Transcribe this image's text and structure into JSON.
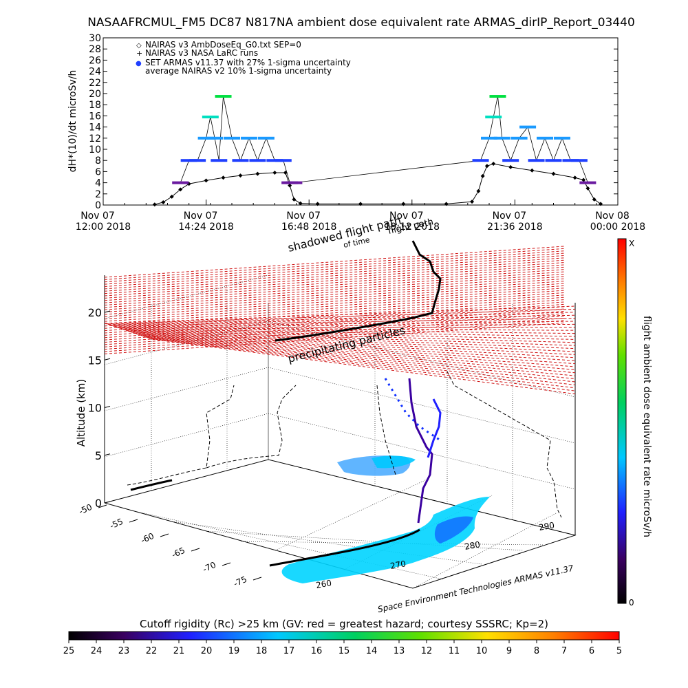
{
  "title": "NASAAFRCMUL_FM5 DC87 N817NA ambient dose equivalent rate ARMAS_dirIP_Report_03440",
  "credit": "Space Environment Technologies ARMAS v11.37",
  "chart_data": [
    {
      "type": "scatter",
      "ylabel": "dH*(10)/dt microSv/h",
      "ylim": [
        0,
        30
      ],
      "yticks": [
        0,
        2,
        4,
        6,
        8,
        10,
        12,
        14,
        16,
        18,
        20,
        22,
        24,
        26,
        28,
        30
      ],
      "xlim_hours": [
        12.0,
        24.0
      ],
      "xticks": [
        {
          "line1": "Nov 07",
          "line2": "12:00 2018"
        },
        {
          "line1": "Nov 07",
          "line2": "14:24 2018"
        },
        {
          "line1": "Nov 07",
          "line2": "16:48 2018"
        },
        {
          "line1": "Nov 07",
          "line2": "19:12 2018"
        },
        {
          "line1": "Nov 07",
          "line2": "21:36 2018"
        },
        {
          "line1": "Nov 08",
          "line2": "00:00 2018"
        }
      ],
      "legend": [
        {
          "symbol": "◇",
          "color": "#000000",
          "text": "NAIRAS v3 AmbDoseEq_G0.txt SEP=0"
        },
        {
          "symbol": "+",
          "color": "#000000",
          "text": "NAIRAS v3 NASA LaRC runs"
        },
        {
          "symbol": "●",
          "color": "#1f3fff",
          "text": "SET ARMAS v11.37 with 27% 1-sigma uncertainty"
        },
        {
          "symbol": "",
          "color": "#000000",
          "text": "average NAIRAS v2 10% 1-sigma uncertainty"
        }
      ],
      "legend_position": "top-left",
      "series": [
        {
          "name": "NAIRAS v3 AmbDoseEq_G0.txt SEP=0",
          "x": [
            13.2,
            13.4,
            13.6,
            13.8,
            14.0,
            14.4,
            14.8,
            15.2,
            15.6,
            16.0,
            16.25,
            16.35,
            16.45,
            16.6,
            17.0,
            18.0,
            19.0,
            20.0,
            20.6,
            20.75,
            20.85,
            20.95,
            21.1,
            21.5,
            22.0,
            22.5,
            23.0,
            23.2,
            23.3,
            23.45,
            23.6
          ],
          "y": [
            0.1,
            0.5,
            1.5,
            2.8,
            3.8,
            4.4,
            4.9,
            5.3,
            5.6,
            5.8,
            5.8,
            3.5,
            1.0,
            0.3,
            0.2,
            0.2,
            0.2,
            0.2,
            0.6,
            2.5,
            5.2,
            7.0,
            7.4,
            6.8,
            6.2,
            5.6,
            4.9,
            4.5,
            3.0,
            1.0,
            0.2
          ]
        },
        {
          "name": "SET ARMAS v11.37",
          "x": [
            13.8,
            14.0,
            14.2,
            14.4,
            14.5,
            14.6,
            14.7,
            14.8,
            15.0,
            15.2,
            15.4,
            15.6,
            15.8,
            16.0,
            16.2,
            16.35,
            16.45,
            20.8,
            21.0,
            21.1,
            21.2,
            21.3,
            21.5,
            21.7,
            21.9,
            22.1,
            22.3,
            22.5,
            22.7,
            22.9,
            23.1,
            23.3
          ],
          "y": [
            4,
            8,
            8,
            12,
            15.8,
            12,
            8,
            19.5,
            12,
            8,
            12,
            8,
            12,
            8,
            8,
            4,
            4,
            8,
            12,
            15.8,
            19.5,
            12,
            8,
            12,
            14,
            8,
            12,
            8,
            12,
            8,
            8,
            4
          ]
        }
      ]
    },
    {
      "type": "scatter",
      "zlabel": "Altitude (km)",
      "zticks": [
        0,
        5,
        10,
        15,
        20
      ],
      "lat_ticks": [
        -50,
        -55,
        -60,
        -65,
        -70,
        -75
      ],
      "lon_ticks": [
        260,
        270,
        280,
        290
      ],
      "annotations": [
        "shadowed flight path",
        "flight path",
        "of time",
        "precipitating particles"
      ]
    },
    {
      "type": "heatmap",
      "label": "flight ambient dose equivalent rate microSv/h",
      "max_label": "X",
      "min_label": "0"
    },
    {
      "type": "heatmap",
      "label": "Cutoff rigidity (Rc) >25 km (GV: red = greatest hazard; courtesy SSSRC; Kp=2)",
      "ticks": [
        "25",
        "24",
        "23",
        "22",
        "21",
        "20",
        "19",
        "18",
        "17",
        "16",
        "15",
        "14",
        "13",
        "12",
        "11",
        "10",
        "9",
        "8",
        "7",
        "6",
        "5"
      ]
    }
  ]
}
